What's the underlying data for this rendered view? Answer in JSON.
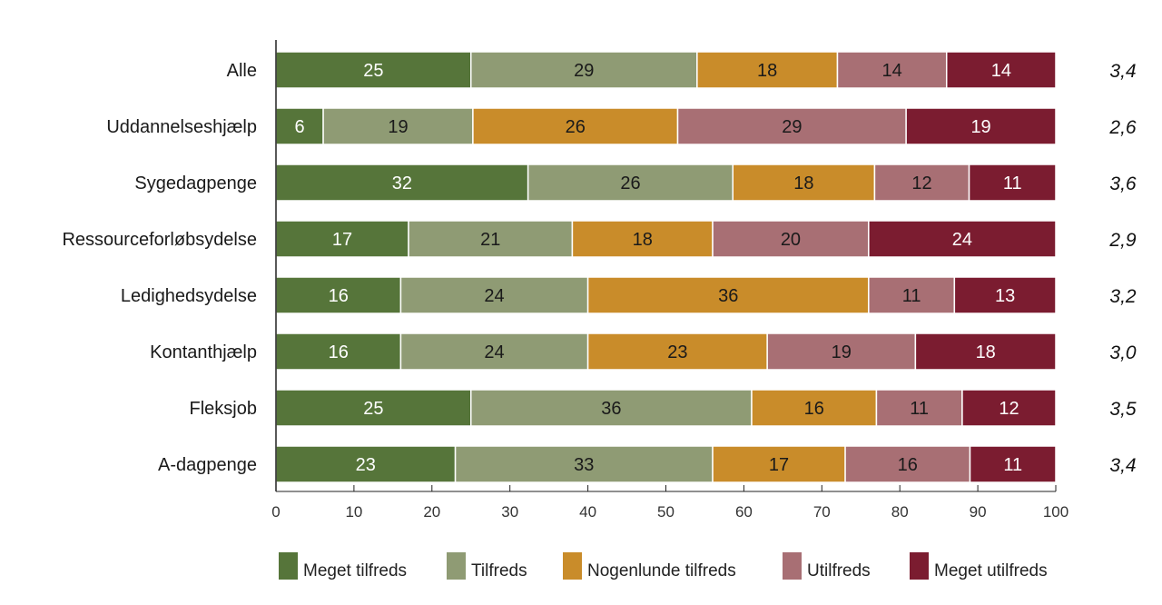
{
  "chart_data": {
    "type": "bar",
    "orientation": "horizontal",
    "stacked": true,
    "categories": [
      "Alle",
      "Uddannelseshjælp",
      "Sygedagpenge",
      "Ressourceforløbsydelse",
      "Ledighedsydelse",
      "Kontanthjælp",
      "Fleksjob",
      "A-dagpenge"
    ],
    "series": [
      {
        "name": "Meget tilfreds",
        "color": "#56753a",
        "label_color": "#ffffff",
        "values": [
          25,
          6,
          32,
          17,
          16,
          16,
          25,
          23
        ]
      },
      {
        "name": "Tilfreds",
        "color": "#8f9b74",
        "label_color": "#1a1a1a",
        "values": [
          29,
          19,
          26,
          21,
          24,
          24,
          36,
          33
        ]
      },
      {
        "name": "Nogenlunde tilfreds",
        "color": "#c98c2a",
        "label_color": "#1a1a1a",
        "values": [
          18,
          26,
          18,
          18,
          36,
          23,
          16,
          17
        ]
      },
      {
        "name": "Utilfreds",
        "color": "#a86f74",
        "label_color": "#1a1a1a",
        "values": [
          14,
          29,
          12,
          20,
          11,
          19,
          11,
          16
        ]
      },
      {
        "name": "Meget utilfreds",
        "color": "#7b1c30",
        "label_color": "#ffffff",
        "values": [
          14,
          19,
          11,
          24,
          13,
          18,
          12,
          11
        ]
      }
    ],
    "right_values": [
      "3,4",
      "2,6",
      "3,6",
      "2,9",
      "3,2",
      "3,0",
      "3,5",
      "3,4"
    ],
    "xlim": [
      0,
      100
    ],
    "xticks": [
      0,
      10,
      20,
      30,
      40,
      50,
      60,
      70,
      80,
      90,
      100
    ],
    "grid": false,
    "legend_placement": "bottom"
  }
}
